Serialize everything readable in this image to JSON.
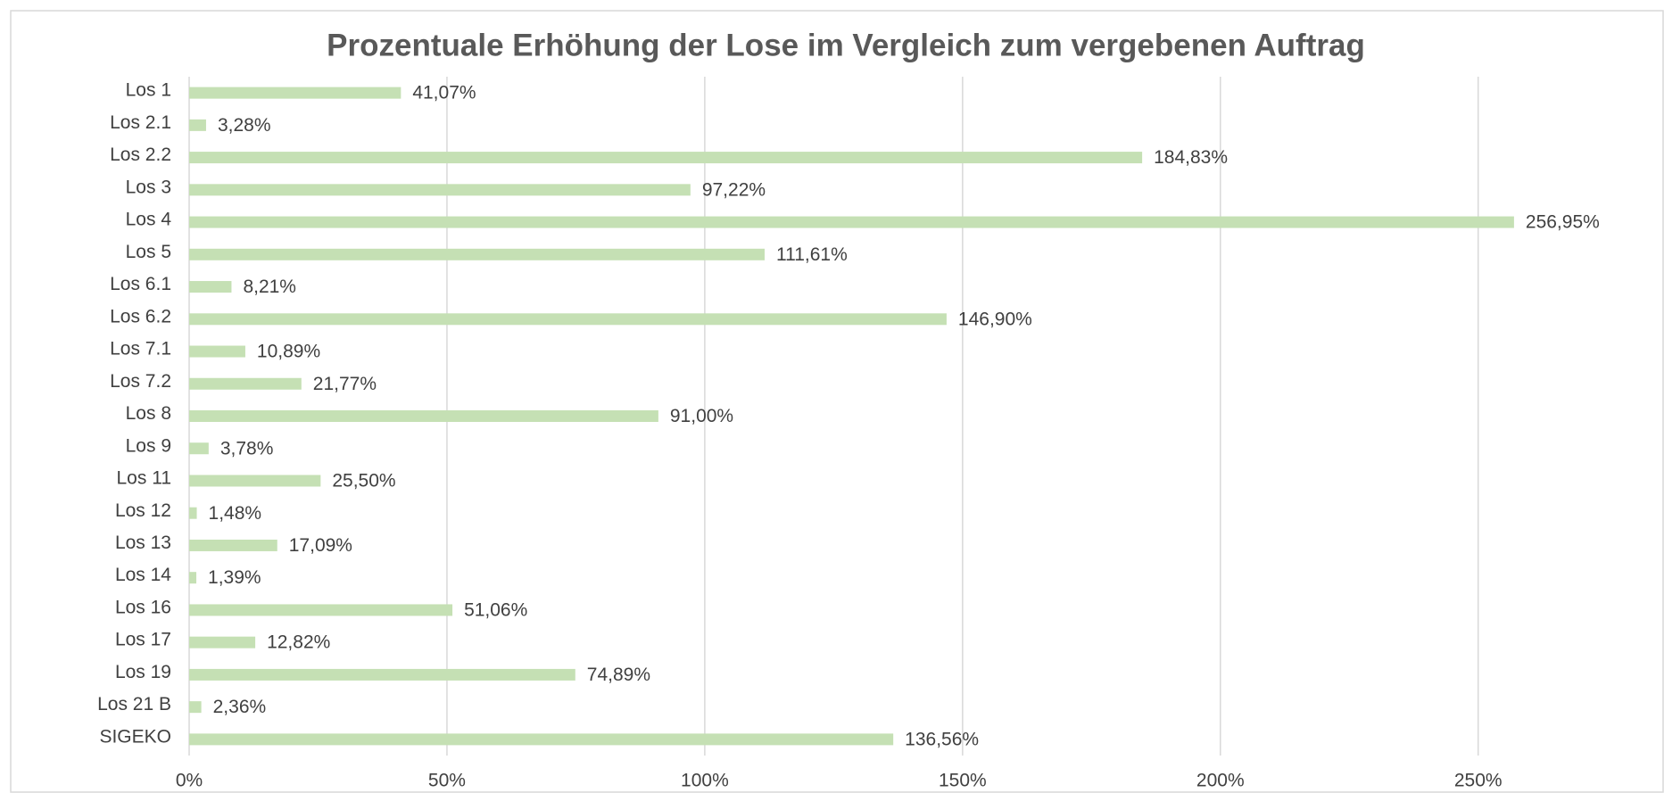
{
  "chart_data": {
    "type": "bar",
    "orientation": "horizontal",
    "title": "Prozentuale Erhöhung der Lose im Vergleich zum vergebenen Auftrag",
    "categories": [
      "Los 1",
      "Los 2.1",
      "Los 2.2",
      "Los 3",
      "Los 4",
      "Los 5",
      "Los 6.1",
      "Los 6.2",
      "Los 7.1",
      "Los 7.2",
      "Los 8",
      "Los 9",
      "Los 11",
      "Los 12",
      "Los 13",
      "Los 14",
      "Los 16",
      "Los 17",
      "Los 19",
      "Los 21 B",
      "SIGEKO"
    ],
    "values": [
      41.07,
      3.28,
      184.83,
      97.22,
      256.95,
      111.61,
      8.21,
      146.9,
      10.89,
      21.77,
      91.0,
      3.78,
      25.5,
      1.48,
      17.09,
      1.39,
      51.06,
      12.82,
      74.89,
      2.36,
      136.56
    ],
    "value_labels": [
      "41,07%",
      "3,28%",
      "184,83%",
      "97,22%",
      "256,95%",
      "111,61%",
      "8,21%",
      "146,90%",
      "10,89%",
      "21,77%",
      "91,00%",
      "3,78%",
      "25,50%",
      "1,48%",
      "17,09%",
      "1,39%",
      "51,06%",
      "12,82%",
      "74,89%",
      "2,36%",
      "136,56%"
    ],
    "color": "#c5e0b4",
    "xlim": [
      0,
      285
    ],
    "xticks": [
      {
        "value": 0,
        "label": "0%"
      },
      {
        "value": 50,
        "label": "50%"
      },
      {
        "value": 100,
        "label": "100%"
      },
      {
        "value": 150,
        "label": "150%"
      },
      {
        "value": 200,
        "label": "200%"
      },
      {
        "value": 250,
        "label": "250%"
      }
    ],
    "grid": true
  }
}
